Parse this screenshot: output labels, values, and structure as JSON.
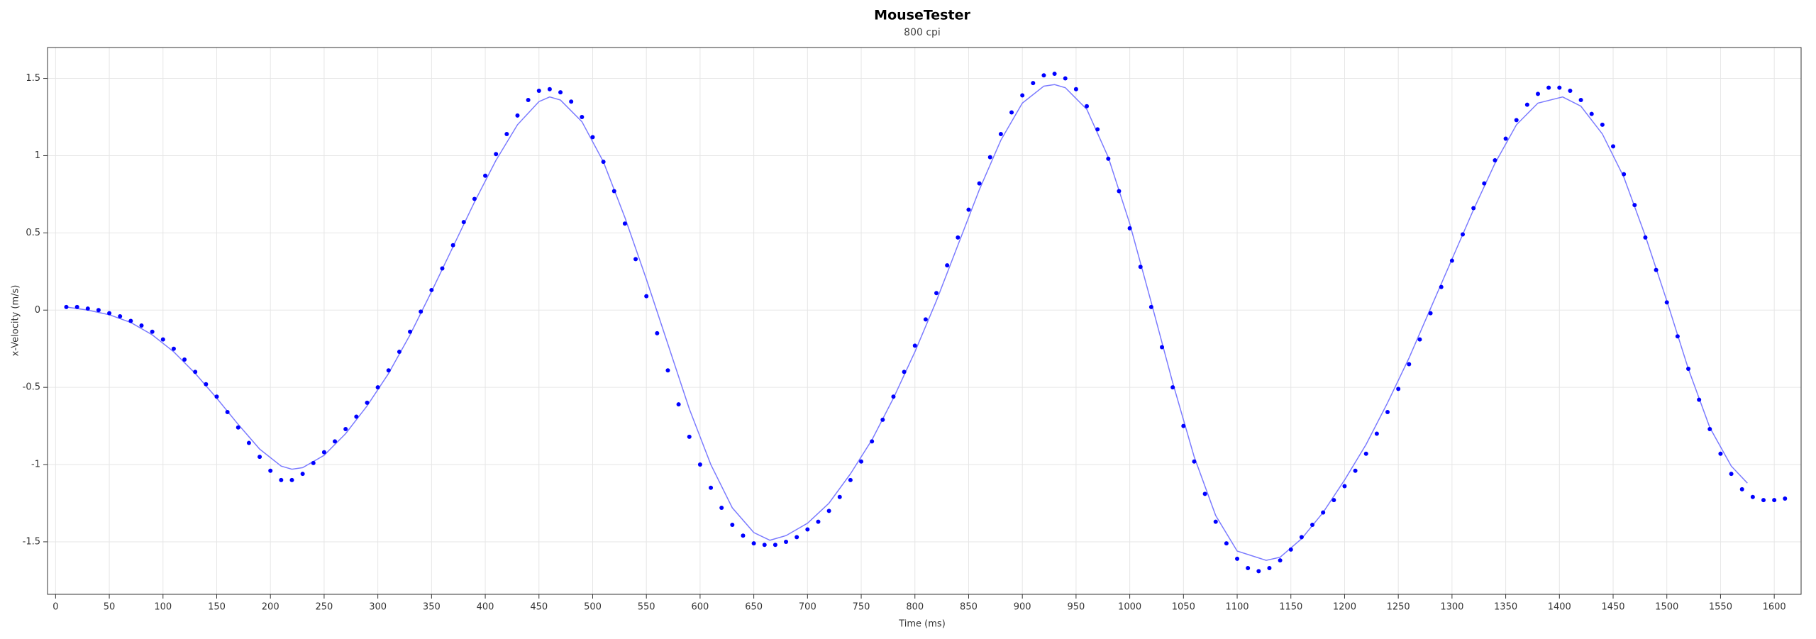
{
  "chart_data": {
    "type": "scatter",
    "title": "MouseTester",
    "subtitle": "800 cpi",
    "xlabel": "Time (ms)",
    "ylabel": "x-Velocity (m/s)",
    "xlim": [
      -7.5,
      1625
    ],
    "ylim": [
      -1.84,
      1.7
    ],
    "xticks": [
      0,
      50,
      100,
      150,
      200,
      250,
      300,
      350,
      400,
      450,
      500,
      550,
      600,
      650,
      700,
      750,
      800,
      850,
      900,
      950,
      1000,
      1050,
      1100,
      1150,
      1200,
      1250,
      1300,
      1350,
      1400,
      1450,
      1500,
      1550,
      1600
    ],
    "yticks": [
      -1.5,
      -1,
      -0.5,
      0,
      0.5,
      1,
      1.5
    ],
    "grid": true,
    "series": [
      {
        "type": "scatter",
        "color": "#0000ff",
        "x": [
          10,
          20,
          30,
          40,
          50,
          60,
          70,
          80,
          90,
          100,
          110,
          120,
          130,
          140,
          150,
          160,
          170,
          180,
          190,
          200,
          210,
          220,
          230,
          240,
          250,
          260,
          270,
          280,
          290,
          300,
          310,
          320,
          330,
          340,
          350,
          360,
          370,
          380,
          390,
          400,
          410,
          420,
          430,
          440,
          450,
          460,
          470,
          480,
          490,
          500,
          510,
          520,
          530,
          540,
          550,
          560,
          570,
          580,
          590,
          600,
          610,
          620,
          630,
          640,
          650,
          660,
          670,
          680,
          690,
          700,
          710,
          720,
          730,
          740,
          750,
          760,
          770,
          780,
          790,
          800,
          810,
          820,
          830,
          840,
          850,
          860,
          870,
          880,
          890,
          900,
          910,
          920,
          930,
          940,
          950,
          960,
          970,
          980,
          990,
          1000,
          1010,
          1020,
          1030,
          1040,
          1050,
          1060,
          1070,
          1080,
          1090,
          1100,
          1110,
          1120,
          1130,
          1140,
          1150,
          1160,
          1170,
          1180,
          1190,
          1200,
          1210,
          1220,
          1230,
          1240,
          1250,
          1260,
          1270,
          1280,
          1290,
          1300,
          1310,
          1320,
          1330,
          1340,
          1350,
          1360,
          1370,
          1380,
          1390,
          1400,
          1410,
          1420,
          1430,
          1440,
          1450,
          1460,
          1470,
          1480,
          1490,
          1500,
          1510,
          1520,
          1530,
          1540,
          1550,
          1560,
          1570,
          1580,
          1590,
          1600,
          1610
        ],
        "values": [
          0.02,
          0.02,
          0.01,
          0.0,
          -0.02,
          -0.04,
          -0.07,
          -0.1,
          -0.14,
          -0.19,
          -0.25,
          -0.32,
          -0.4,
          -0.48,
          -0.56,
          -0.66,
          -0.76,
          -0.86,
          -0.95,
          -1.04,
          -1.1,
          -1.1,
          -1.06,
          -0.99,
          -0.92,
          -0.85,
          -0.77,
          -0.69,
          -0.6,
          -0.5,
          -0.39,
          -0.27,
          -0.14,
          -0.01,
          0.13,
          0.27,
          0.42,
          0.57,
          0.72,
          0.87,
          1.01,
          1.14,
          1.26,
          1.36,
          1.42,
          1.43,
          1.41,
          1.35,
          1.25,
          1.12,
          0.96,
          0.77,
          0.56,
          0.33,
          0.09,
          -0.15,
          -0.39,
          -0.61,
          -0.82,
          -1.0,
          -1.15,
          -1.28,
          -1.39,
          -1.46,
          -1.51,
          -1.52,
          -1.52,
          -1.5,
          -1.47,
          -1.42,
          -1.37,
          -1.3,
          -1.21,
          -1.1,
          -0.98,
          -0.85,
          -0.71,
          -0.56,
          -0.4,
          -0.23,
          -0.06,
          0.11,
          0.29,
          0.47,
          0.65,
          0.82,
          0.99,
          1.14,
          1.28,
          1.39,
          1.47,
          1.52,
          1.53,
          1.5,
          1.43,
          1.32,
          1.17,
          0.98,
          0.77,
          0.53,
          0.28,
          0.02,
          -0.24,
          -0.5,
          -0.75,
          -0.98,
          -1.19,
          -1.37,
          -1.51,
          -1.61,
          -1.67,
          -1.69,
          -1.67,
          -1.62,
          -1.55,
          -1.47,
          -1.39,
          -1.31,
          -1.23,
          -1.14,
          -1.04,
          -0.93,
          -0.8,
          -0.66,
          -0.51,
          -0.35,
          -0.19,
          -0.02,
          0.15,
          0.32,
          0.49,
          0.66,
          0.82,
          0.97,
          1.11,
          1.23,
          1.33,
          1.4,
          1.44,
          1.44,
          1.42,
          1.36,
          1.27,
          1.2,
          1.06,
          0.88,
          0.68,
          0.47,
          0.26,
          0.05,
          -0.17,
          -0.38,
          -0.58,
          -0.77,
          -0.93,
          -1.06,
          -1.16,
          -1.21,
          -1.23,
          -1.23,
          -1.22
        ]
      },
      {
        "type": "line",
        "color": "#7b7bff",
        "x": [
          10,
          30,
          50,
          70,
          90,
          110,
          130,
          150,
          170,
          190,
          210,
          220,
          230,
          250,
          270,
          290,
          310,
          330,
          350,
          370,
          390,
          410,
          430,
          450,
          460,
          470,
          490,
          510,
          530,
          550,
          570,
          590,
          610,
          630,
          650,
          665,
          680,
          700,
          720,
          740,
          760,
          780,
          800,
          820,
          840,
          860,
          880,
          900,
          920,
          930,
          940,
          960,
          980,
          1000,
          1020,
          1040,
          1060,
          1080,
          1100,
          1127,
          1140,
          1160,
          1180,
          1200,
          1220,
          1240,
          1260,
          1280,
          1300,
          1320,
          1340,
          1360,
          1380,
          1403,
          1420,
          1440,
          1460,
          1480,
          1500,
          1520,
          1540,
          1560,
          1575
        ],
        "values": [
          0.02,
          0.0,
          -0.03,
          -0.08,
          -0.16,
          -0.27,
          -0.41,
          -0.57,
          -0.74,
          -0.9,
          -1.01,
          -1.03,
          -1.02,
          -0.94,
          -0.8,
          -0.62,
          -0.41,
          -0.16,
          0.12,
          0.41,
          0.7,
          0.97,
          1.2,
          1.35,
          1.38,
          1.36,
          1.22,
          0.96,
          0.6,
          0.2,
          -0.22,
          -0.64,
          -1.0,
          -1.28,
          -1.44,
          -1.49,
          -1.46,
          -1.38,
          -1.25,
          -1.06,
          -0.84,
          -0.57,
          -0.27,
          0.06,
          0.42,
          0.78,
          1.1,
          1.34,
          1.45,
          1.46,
          1.44,
          1.3,
          0.99,
          0.56,
          0.05,
          -0.47,
          -0.95,
          -1.33,
          -1.56,
          -1.62,
          -1.6,
          -1.48,
          -1.31,
          -1.1,
          -0.87,
          -0.6,
          -0.31,
          0.01,
          0.33,
          0.65,
          0.95,
          1.2,
          1.34,
          1.38,
          1.32,
          1.14,
          0.86,
          0.48,
          0.06,
          -0.38,
          -0.76,
          -1.01,
          -1.12
        ]
      }
    ]
  }
}
